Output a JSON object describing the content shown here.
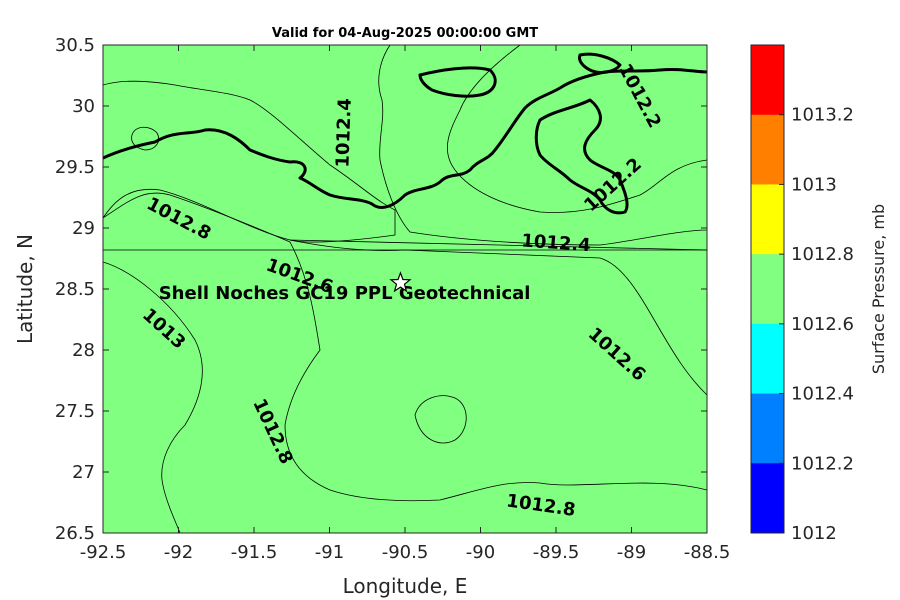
{
  "chart_data": {
    "type": "filled-contour",
    "title": "Valid for 04-Aug-2025 00:00:00 GMT",
    "xlabel": "Longitude, E",
    "ylabel": "Latitude, N",
    "xlim": [
      -92.5,
      -88.5
    ],
    "ylim": [
      26.5,
      30.5
    ],
    "xticks": [
      -92.5,
      -92,
      -91.5,
      -91,
      -90.5,
      -90,
      -89.5,
      -89,
      -88.5
    ],
    "xtick_labels": [
      "-92.5",
      "-92",
      "-91.5",
      "-91",
      "-90.5",
      "-90",
      "-89.5",
      "-89",
      "-88.5"
    ],
    "yticks": [
      26.5,
      27,
      27.5,
      28,
      28.5,
      29,
      29.5,
      30,
      30.5
    ],
    "ytick_labels": [
      "26.5",
      "27",
      "27.5",
      "28",
      "28.5",
      "29",
      "29.5",
      "30",
      "30.5"
    ],
    "colorbar": {
      "label": "Surface Pressure, mb",
      "ticks": [
        1012,
        1012.2,
        1012.4,
        1012.6,
        1012.8,
        1013,
        1013.2
      ],
      "tick_labels": [
        "1012",
        "1012.2",
        "1012.4",
        "1012.6",
        "1012.8",
        "1013",
        "1013.2"
      ],
      "levels": [
        {
          "min": 1012.0,
          "max": 1012.2,
          "color": "#0000ff"
        },
        {
          "min": 1012.2,
          "max": 1012.4,
          "color": "#0080ff"
        },
        {
          "min": 1012.4,
          "max": 1012.6,
          "color": "#00ffff"
        },
        {
          "min": 1012.6,
          "max": 1012.8,
          "color": "#80ff80"
        },
        {
          "min": 1012.8,
          "max": 1013.0,
          "color": "#ffff00"
        },
        {
          "min": 1013.0,
          "max": 1013.2,
          "color": "#ff8000"
        },
        {
          "min": 1013.2,
          "max": 1013.4,
          "color": "#ff0000"
        }
      ]
    },
    "contour_labels": [
      {
        "text": "1012.8",
        "lon": -92.0,
        "lat": 29.07,
        "angle": 28
      },
      {
        "text": "1012.6",
        "lon": -91.2,
        "lat": 28.6,
        "angle": 20
      },
      {
        "text": "1012.4",
        "lon": -90.9,
        "lat": 29.78,
        "angle": -88
      },
      {
        "text": "1012.4",
        "lon": -89.5,
        "lat": 28.87,
        "angle": 4
      },
      {
        "text": "1012.2",
        "lon": -89.12,
        "lat": 29.35,
        "angle": -42
      },
      {
        "text": "1012.2",
        "lon": -88.95,
        "lat": 30.08,
        "angle": 62
      },
      {
        "text": "1013",
        "lon": -92.1,
        "lat": 28.17,
        "angle": 42
      },
      {
        "text": "1012.8",
        "lon": -91.38,
        "lat": 27.33,
        "angle": 65
      },
      {
        "text": "1012.6",
        "lon": -89.1,
        "lat": 27.96,
        "angle": 42
      },
      {
        "text": "1012.8",
        "lon": -89.6,
        "lat": 26.72,
        "angle": 8
      }
    ],
    "annotation": {
      "text": "Shell Noches   GC19 PPL  Geotechnical",
      "lon": -90.9,
      "lat": 28.42
    },
    "marker": {
      "type": "star",
      "lon": -90.53,
      "lat": 28.55
    }
  }
}
